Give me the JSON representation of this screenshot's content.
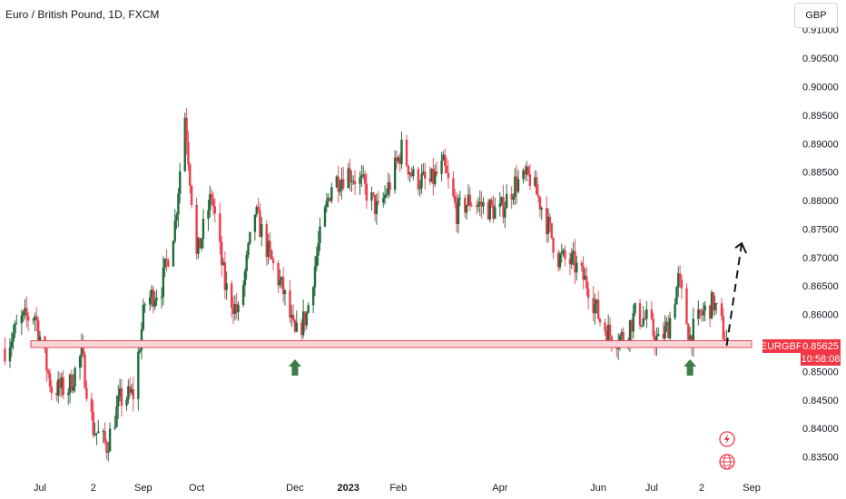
{
  "header": {
    "title": "Euro / British Pound, 1D, FXCM",
    "currency_button": "GBP"
  },
  "price_tag": {
    "symbol": "EURGBP",
    "price": "0.85625",
    "countdown": "10:58:08"
  },
  "colors": {
    "up": "#1e6b3b",
    "down": "#ef3b4b",
    "zone_fill": "#fbd4d7",
    "zone_stroke": "#e0505a",
    "arrow": "#3d7d47",
    "tag_bg": "#f23645",
    "wick_up": "#2b6b3f",
    "wick_down": "#e85466"
  },
  "icons": [
    "flash-icon",
    "globe-icon"
  ],
  "chart_data": {
    "type": "candlestick",
    "title": "Euro / British Pound, 1D, FXCM",
    "symbol": "EURGBP",
    "ylim": [
      0.832,
      0.9185
    ],
    "y_ticks": [
      "0.83500",
      "0.84000",
      "0.84500",
      "0.85000",
      "0.85500",
      "0.86000",
      "0.86500",
      "0.87000",
      "0.87500",
      "0.88000",
      "0.88500",
      "0.89000",
      "0.89500",
      "0.90000",
      "0.90500",
      "0.91000"
    ],
    "x_ticks": [
      {
        "label": "Jul",
        "date": "2022-07-01"
      },
      {
        "label": "2",
        "date": "2022-08-02"
      },
      {
        "label": "Sep",
        "date": "2022-09-01"
      },
      {
        "label": "Oct",
        "date": "2022-10-03"
      },
      {
        "label": "Dec",
        "date": "2022-12-01"
      },
      {
        "label": "2023",
        "date": "2023-01-02",
        "bold": true
      },
      {
        "label": "Feb",
        "date": "2023-02-01"
      },
      {
        "label": "Apr",
        "date": "2023-04-03"
      },
      {
        "label": "Jun",
        "date": "2023-06-01"
      },
      {
        "label": "Jul",
        "date": "2023-07-03"
      },
      {
        "label": "2",
        "date": "2023-08-02"
      },
      {
        "label": "Sep",
        "date": "2023-09-01"
      }
    ],
    "last_price": 0.85625,
    "support_zone": [
      0.8542,
      0.8554
    ],
    "projection": [
      {
        "date": "2023-08-17",
        "price": 0.8545
      },
      {
        "date": "2023-08-26",
        "price": 0.8725
      }
    ],
    "arrows_at": [
      "2022-12-01",
      "2023-07-26"
    ],
    "trend": [
      {
        "date": "2022-06-10",
        "price": 0.854
      },
      {
        "date": "2022-06-20",
        "price": 0.859
      },
      {
        "date": "2022-06-28",
        "price": 0.86
      },
      {
        "date": "2022-07-08",
        "price": 0.847
      },
      {
        "date": "2022-07-18",
        "price": 0.847
      },
      {
        "date": "2022-07-26",
        "price": 0.853
      },
      {
        "date": "2022-08-02",
        "price": 0.84
      },
      {
        "date": "2022-08-10",
        "price": 0.837
      },
      {
        "date": "2022-08-18",
        "price": 0.845
      },
      {
        "date": "2022-08-26",
        "price": 0.846
      },
      {
        "date": "2022-09-02",
        "price": 0.862
      },
      {
        "date": "2022-09-12",
        "price": 0.865
      },
      {
        "date": "2022-09-20",
        "price": 0.876
      },
      {
        "date": "2022-09-26",
        "price": 0.895
      },
      {
        "date": "2022-10-03",
        "price": 0.87
      },
      {
        "date": "2022-10-12",
        "price": 0.881
      },
      {
        "date": "2022-10-20",
        "price": 0.865
      },
      {
        "date": "2022-10-28",
        "price": 0.86
      },
      {
        "date": "2022-11-07",
        "price": 0.878
      },
      {
        "date": "2022-11-16",
        "price": 0.87
      },
      {
        "date": "2022-11-24",
        "price": 0.864
      },
      {
        "date": "2022-12-01",
        "price": 0.856
      },
      {
        "date": "2022-12-08",
        "price": 0.86
      },
      {
        "date": "2022-12-15",
        "price": 0.872
      },
      {
        "date": "2022-12-23",
        "price": 0.883
      },
      {
        "date": "2023-01-02",
        "price": 0.885
      },
      {
        "date": "2023-01-10",
        "price": 0.883
      },
      {
        "date": "2023-01-20",
        "price": 0.878
      },
      {
        "date": "2023-01-27",
        "price": 0.883
      },
      {
        "date": "2023-02-03",
        "price": 0.889
      },
      {
        "date": "2023-02-10",
        "price": 0.884
      },
      {
        "date": "2023-02-20",
        "price": 0.883
      },
      {
        "date": "2023-02-28",
        "price": 0.886
      },
      {
        "date": "2023-03-08",
        "price": 0.878
      },
      {
        "date": "2023-03-16",
        "price": 0.88
      },
      {
        "date": "2023-03-24",
        "price": 0.879
      },
      {
        "date": "2023-04-03",
        "price": 0.878
      },
      {
        "date": "2023-04-12",
        "price": 0.883
      },
      {
        "date": "2023-04-21",
        "price": 0.884
      },
      {
        "date": "2023-04-28",
        "price": 0.879
      },
      {
        "date": "2023-05-08",
        "price": 0.87
      },
      {
        "date": "2023-05-17",
        "price": 0.869
      },
      {
        "date": "2023-05-26",
        "price": 0.865
      },
      {
        "date": "2023-06-02",
        "price": 0.859
      },
      {
        "date": "2023-06-09",
        "price": 0.856
      },
      {
        "date": "2023-06-16",
        "price": 0.856
      },
      {
        "date": "2023-06-23",
        "price": 0.86
      },
      {
        "date": "2023-06-30",
        "price": 0.859
      },
      {
        "date": "2023-07-07",
        "price": 0.855
      },
      {
        "date": "2023-07-13",
        "price": 0.858
      },
      {
        "date": "2023-07-19",
        "price": 0.866
      },
      {
        "date": "2023-07-26",
        "price": 0.856
      },
      {
        "date": "2023-08-02",
        "price": 0.86
      },
      {
        "date": "2023-08-09",
        "price": 0.862
      },
      {
        "date": "2023-08-14",
        "price": 0.858
      },
      {
        "date": "2023-08-17",
        "price": 0.855
      }
    ]
  }
}
